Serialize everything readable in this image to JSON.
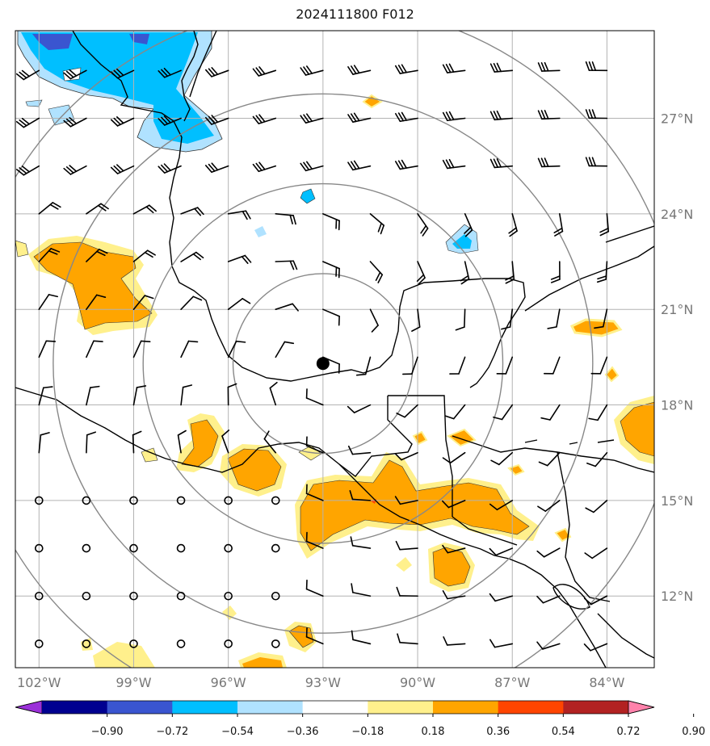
{
  "title": "2024111800 F012",
  "map": {
    "lon_range": [
      -102.75,
      -82.5
    ],
    "lat_range": [
      9.75,
      29.75
    ],
    "lon_ticks": [
      {
        "value": -102,
        "label": "102°W"
      },
      {
        "value": -99,
        "label": "99°W"
      },
      {
        "value": -96,
        "label": "96°W"
      },
      {
        "value": -93,
        "label": "93°W"
      },
      {
        "value": -90,
        "label": "90°W"
      },
      {
        "value": -87,
        "label": "87°W"
      },
      {
        "value": -84,
        "label": "84°W"
      }
    ],
    "lat_ticks": [
      {
        "value": 27,
        "label": "27°N"
      },
      {
        "value": 24,
        "label": "24°N"
      },
      {
        "value": 21,
        "label": "21°N"
      },
      {
        "value": 18,
        "label": "18°N"
      },
      {
        "value": 15,
        "label": "15°N"
      },
      {
        "value": 12,
        "label": "12°N"
      }
    ],
    "gridlines": true,
    "center_marker": {
      "lon": -93.0,
      "lat": 19.3
    },
    "range_rings_deg": [
      2.85,
      5.7,
      8.55,
      11.4
    ]
  },
  "colorbar": {
    "levels": [
      "−0.90",
      "−0.72",
      "−0.54",
      "−0.36",
      "−0.18",
      "0.18",
      "0.36",
      "0.54",
      "0.72",
      "0.90"
    ],
    "colors": [
      "#9b30d9",
      "#000090",
      "#3a55d0",
      "#00bfff",
      "#b0e2ff",
      "#ffffff",
      "#fff08c",
      "#ffa500",
      "#ff4500",
      "#b22222",
      "#ff82ab"
    ]
  }
}
